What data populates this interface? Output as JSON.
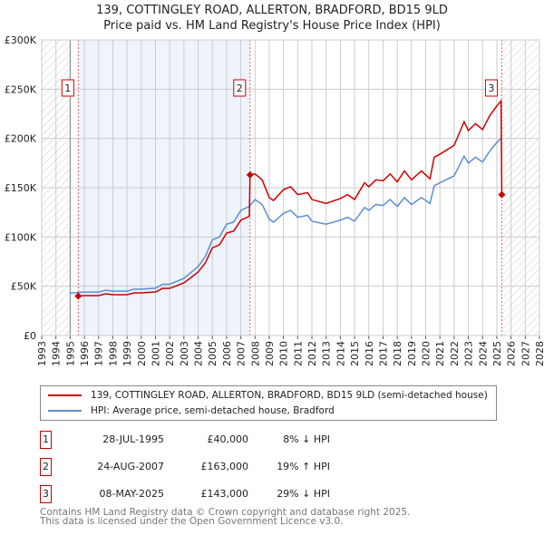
{
  "chart_data": {
    "type": "line",
    "title": "139, COTTINGLEY ROAD, ALLERTON, BRADFORD, BD15 9LD",
    "subtitle": "Price paid vs. HM Land Registry's House Price Index (HPI)",
    "xlim": [
      1993,
      2028
    ],
    "ylim": [
      0,
      300000
    ],
    "yticks": [
      0,
      50000,
      100000,
      150000,
      200000,
      250000,
      300000
    ],
    "ytick_labels": [
      "£0",
      "£50K",
      "£100K",
      "£150K",
      "£200K",
      "£250K",
      "£300K"
    ],
    "xticks": [
      "1993",
      "1994",
      "1995",
      "1996",
      "1997",
      "1998",
      "1999",
      "2000",
      "2001",
      "2002",
      "2003",
      "2004",
      "2005",
      "2006",
      "2007",
      "2008",
      "2009",
      "2010",
      "2011",
      "2012",
      "2013",
      "2014",
      "2015",
      "2016",
      "2017",
      "2018",
      "2019",
      "2020",
      "2021",
      "2022",
      "2023",
      "2024",
      "2025",
      "2026",
      "2027",
      "2028"
    ],
    "grid": true,
    "colors": {
      "property": "#cc0000",
      "hpi": "#5b8fd0",
      "shade": "#eef3fc"
    },
    "series": [
      {
        "name": "139, COTTINGLEY ROAD, ALLERTON, BRADFORD, BD15 9LD (semi-detached house)",
        "x": [
          1995.57,
          1996,
          1997,
          1997.5,
          1998,
          1999,
          1999.5,
          2000,
          2001,
          2001.5,
          2002,
          2003,
          2003.5,
          2004,
          2004.5,
          2005,
          2005.5,
          2006,
          2006.5,
          2007,
          2007.6,
          2007.65,
          2008,
          2008.5,
          2009,
          2009.3,
          2010,
          2010.5,
          2011,
          2011.7,
          2012,
          2013,
          2014,
          2014.5,
          2015,
          2015.7,
          2016,
          2016.5,
          2017,
          2017.5,
          2018,
          2018.5,
          2019,
          2019.7,
          2020.3,
          2020.6,
          2021,
          2022,
          2022.7,
          2023,
          2023.5,
          2024,
          2024.5,
          2025,
          2025.3,
          2025.35
        ],
        "y": [
          40000,
          40500,
          40500,
          42300,
          41400,
          41400,
          43200,
          43200,
          44200,
          47800,
          47800,
          53400,
          58900,
          64400,
          73600,
          89000,
          92000,
          104000,
          106000,
          117000,
          121000,
          163000,
          164000,
          158000,
          140000,
          137000,
          148000,
          151000,
          143000,
          145000,
          138000,
          134000,
          139000,
          143000,
          138000,
          155000,
          151000,
          158000,
          157000,
          164000,
          156000,
          167000,
          158000,
          167000,
          159000,
          181000,
          184000,
          193000,
          217000,
          208000,
          215000,
          209000,
          223000,
          233000,
          238000,
          143000
        ]
      },
      {
        "name": "HPI: Average price, semi-detached house, Bradford",
        "x": [
          1995,
          1996,
          1997,
          1997.5,
          1998,
          1999,
          1999.5,
          2000,
          2001,
          2001.5,
          2002,
          2003,
          2003.5,
          2004,
          2004.5,
          2005,
          2005.5,
          2006,
          2006.5,
          2007,
          2007.6,
          2008,
          2008.5,
          2009,
          2009.3,
          2010,
          2010.5,
          2011,
          2011.7,
          2012,
          2013,
          2014,
          2014.5,
          2015,
          2015.7,
          2016,
          2016.5,
          2017,
          2017.5,
          2018,
          2018.5,
          2019,
          2019.7,
          2020.3,
          2020.6,
          2021,
          2022,
          2022.7,
          2023,
          2023.5,
          2024,
          2024.5,
          2025,
          2025.3
        ],
        "y": [
          43000,
          44000,
          44000,
          46000,
          45000,
          45000,
          47000,
          47000,
          48000,
          52000,
          52000,
          58000,
          64000,
          70000,
          80000,
          97000,
          100000,
          113000,
          115000,
          127000,
          131000,
          138000,
          133000,
          118000,
          115000,
          124000,
          127000,
          120000,
          122000,
          116000,
          113000,
          117000,
          120000,
          116000,
          130000,
          127000,
          133000,
          132000,
          138000,
          131000,
          140000,
          133000,
          140000,
          134000,
          152000,
          155000,
          162000,
          182000,
          175000,
          181000,
          176000,
          187000,
          196000,
          200000
        ]
      }
    ],
    "sales": [
      {
        "label": "1",
        "x": 1995.57,
        "price": 40000,
        "date": "28-JUL-1995",
        "price_text": "£40,000",
        "hpi_text": "8% ↓ HPI"
      },
      {
        "label": "2",
        "x": 2007.65,
        "price": 163000,
        "date": "24-AUG-2007",
        "price_text": "£163,000",
        "hpi_text": "19% ↑ HPI"
      },
      {
        "label": "3",
        "x": 2025.35,
        "price": 143000,
        "date": "08-MAY-2025",
        "price_text": "£143,000",
        "hpi_text": "29% ↓ HPI"
      }
    ],
    "data_start": 1995,
    "data_end": 2025.35
  },
  "footer": {
    "line1": "Contains HM Land Registry data © Crown copyright and database right 2025.",
    "line2": "This data is licensed under the Open Government Licence v3.0."
  }
}
